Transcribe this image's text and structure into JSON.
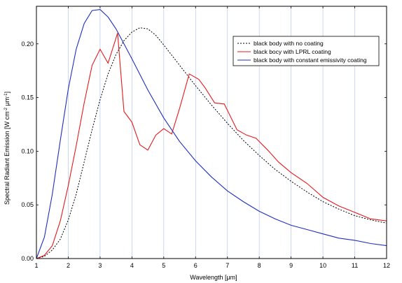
{
  "chart_data": {
    "type": "line",
    "title": "",
    "xlabel": "Wavelength [μm]",
    "ylabel_main": "Spectral Radiant Emission [W cm",
    "ylabel_sup1": "-2",
    "ylabel_mid": " μm",
    "ylabel_sup2": "-1",
    "ylabel_end": "]",
    "xlim": [
      1,
      12
    ],
    "ylim": [
      0,
      0.235
    ],
    "x_ticks": [
      1,
      2,
      3,
      4,
      5,
      6,
      7,
      8,
      9,
      10,
      11,
      12
    ],
    "y_ticks": [
      0.0,
      0.05,
      0.1,
      0.15,
      0.2
    ],
    "x_tick_labels": [
      "1",
      "2",
      "3",
      "4",
      "5",
      "6",
      "7",
      "8",
      "9",
      "10",
      "11",
      "12"
    ],
    "y_tick_labels": [
      "0.00",
      "0.05",
      "0.10",
      "0.15",
      "0.20"
    ],
    "grid": "vertical",
    "legend_position": "top-right",
    "series": [
      {
        "name": "black body with no coating",
        "color": "#000000",
        "style": "dotted",
        "points": [
          [
            1,
            0
          ],
          [
            1.25,
            0.002
          ],
          [
            1.5,
            0.008
          ],
          [
            1.75,
            0.018
          ],
          [
            2,
            0.036
          ],
          [
            2.25,
            0.06
          ],
          [
            2.5,
            0.09
          ],
          [
            2.75,
            0.12
          ],
          [
            3,
            0.148
          ],
          [
            3.25,
            0.172
          ],
          [
            3.5,
            0.19
          ],
          [
            3.75,
            0.203
          ],
          [
            4,
            0.211
          ],
          [
            4.25,
            0.215
          ],
          [
            4.5,
            0.214
          ],
          [
            4.75,
            0.208
          ],
          [
            5,
            0.199
          ],
          [
            5.5,
            0.18
          ],
          [
            6,
            0.161
          ],
          [
            6.5,
            0.143
          ],
          [
            7,
            0.126
          ],
          [
            7.5,
            0.11
          ],
          [
            8,
            0.096
          ],
          [
            8.5,
            0.083
          ],
          [
            9,
            0.072
          ],
          [
            9.5,
            0.062
          ],
          [
            10,
            0.053
          ],
          [
            10.5,
            0.046
          ],
          [
            11,
            0.04
          ],
          [
            11.5,
            0.036
          ],
          [
            12,
            0.033
          ]
        ]
      },
      {
        "name": "black bocy with LPRL coating",
        "color": "#e41a1c",
        "style": "solid",
        "points": [
          [
            1,
            0
          ],
          [
            1.25,
            0.003
          ],
          [
            1.5,
            0.012
          ],
          [
            1.75,
            0.035
          ],
          [
            2,
            0.068
          ],
          [
            2.25,
            0.105
          ],
          [
            2.5,
            0.145
          ],
          [
            2.75,
            0.18
          ],
          [
            3,
            0.195
          ],
          [
            3.25,
            0.182
          ],
          [
            3.55,
            0.21
          ],
          [
            3.75,
            0.137
          ],
          [
            4,
            0.127
          ],
          [
            4.25,
            0.106
          ],
          [
            4.5,
            0.101
          ],
          [
            4.75,
            0.115
          ],
          [
            5,
            0.121
          ],
          [
            5.25,
            0.116
          ],
          [
            5.5,
            0.14
          ],
          [
            5.8,
            0.172
          ],
          [
            6.1,
            0.167
          ],
          [
            6.3,
            0.159
          ],
          [
            6.6,
            0.145
          ],
          [
            6.9,
            0.144
          ],
          [
            7.3,
            0.12
          ],
          [
            7.6,
            0.115
          ],
          [
            7.9,
            0.112
          ],
          [
            8.3,
            0.1
          ],
          [
            8.6,
            0.09
          ],
          [
            9,
            0.08
          ],
          [
            9.5,
            0.07
          ],
          [
            10,
            0.057
          ],
          [
            10.5,
            0.049
          ],
          [
            11,
            0.043
          ],
          [
            11.5,
            0.037
          ],
          [
            12,
            0.035
          ]
        ]
      },
      {
        "name": "black body with constant emissivity coating",
        "color": "#1f2fbf",
        "style": "solid",
        "points": [
          [
            1,
            0
          ],
          [
            1.25,
            0.02
          ],
          [
            1.5,
            0.06
          ],
          [
            1.75,
            0.11
          ],
          [
            2,
            0.158
          ],
          [
            2.25,
            0.195
          ],
          [
            2.5,
            0.219
          ],
          [
            2.75,
            0.231
          ],
          [
            3,
            0.232
          ],
          [
            3.25,
            0.225
          ],
          [
            3.5,
            0.214
          ],
          [
            3.75,
            0.2
          ],
          [
            4,
            0.186
          ],
          [
            4.5,
            0.157
          ],
          [
            5,
            0.131
          ],
          [
            5.5,
            0.109
          ],
          [
            6,
            0.091
          ],
          [
            6.5,
            0.076
          ],
          [
            7,
            0.063
          ],
          [
            7.5,
            0.053
          ],
          [
            8,
            0.044
          ],
          [
            8.5,
            0.037
          ],
          [
            9,
            0.031
          ],
          [
            9.5,
            0.027
          ],
          [
            10,
            0.023
          ],
          [
            10.5,
            0.019
          ],
          [
            11,
            0.017
          ],
          [
            11.5,
            0.014
          ],
          [
            12,
            0.012
          ]
        ]
      }
    ]
  }
}
